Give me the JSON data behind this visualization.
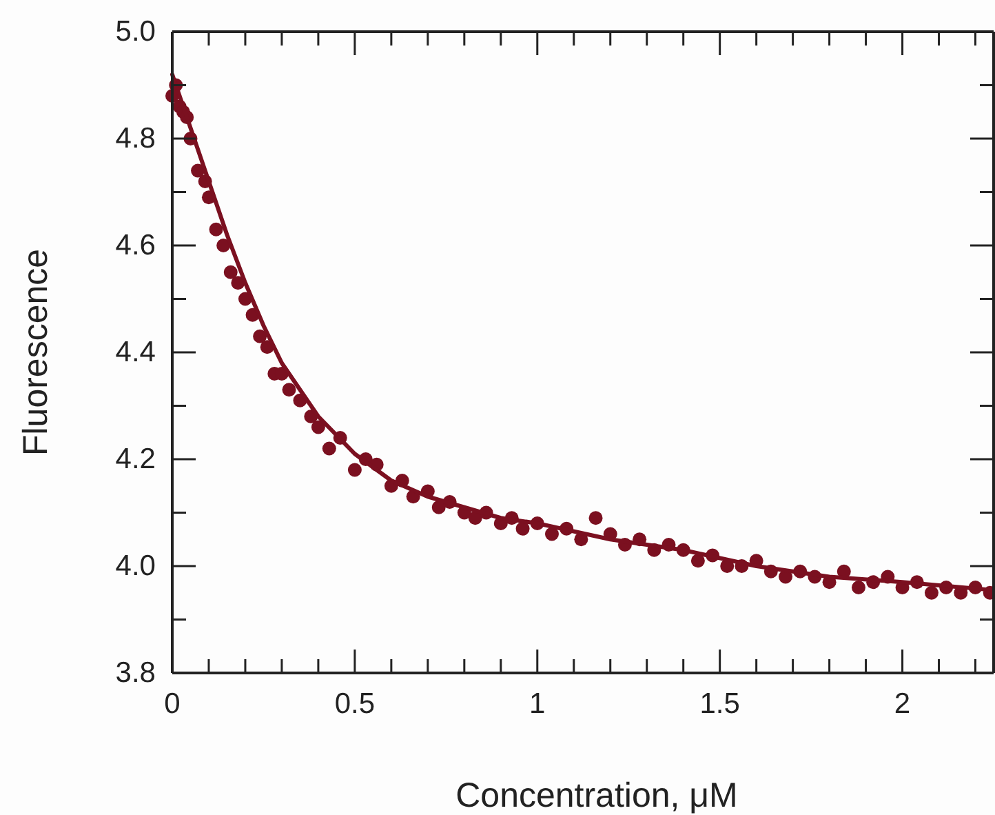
{
  "chart_data": {
    "type": "scatter",
    "xlabel": "Concentration, μM",
    "ylabel": "Fluorescence",
    "xlim": [
      0,
      2.25
    ],
    "ylim": [
      3.8,
      5.0
    ],
    "xticks": [
      0,
      {
        "value": 0.1,
        "label": null
      },
      {
        "value": 0.2,
        "label": null
      },
      {
        "value": 0.3,
        "label": null
      },
      {
        "value": 0.4,
        "label": null
      },
      0.5,
      {
        "value": 0.6,
        "label": null
      },
      {
        "value": 0.7,
        "label": null
      },
      {
        "value": 0.8,
        "label": null
      },
      {
        "value": 0.9,
        "label": null
      },
      1,
      {
        "value": 1.1,
        "label": null
      },
      {
        "value": 1.2,
        "label": null
      },
      {
        "value": 1.3,
        "label": null
      },
      {
        "value": 1.4,
        "label": null
      },
      1.5,
      {
        "value": 1.6,
        "label": null
      },
      {
        "value": 1.7,
        "label": null
      },
      {
        "value": 1.8,
        "label": null
      },
      {
        "value": 1.9,
        "label": null
      },
      2,
      {
        "value": 2.1,
        "label": null
      },
      {
        "value": 2.2,
        "label": null
      }
    ],
    "yticks": [
      {
        "value": 3.8,
        "label": "3.8"
      },
      {
        "value": 3.9,
        "label": null
      },
      {
        "value": 4.0,
        "label": "4.0"
      },
      {
        "value": 4.1,
        "label": null
      },
      {
        "value": 4.2,
        "label": "4.2"
      },
      {
        "value": 4.3,
        "label": null
      },
      {
        "value": 4.4,
        "label": "4.4"
      },
      {
        "value": 4.5,
        "label": null
      },
      {
        "value": 4.6,
        "label": "4.6"
      },
      {
        "value": 4.7,
        "label": null
      },
      {
        "value": 4.8,
        "label": "4.8"
      },
      {
        "value": 4.9,
        "label": null
      },
      {
        "value": 5.0,
        "label": "5.0"
      }
    ],
    "grid": false,
    "marker": "circle",
    "series": [
      {
        "color": "#7b1020",
        "x": [
          0.0,
          0.01,
          0.02,
          0.03,
          0.04,
          0.05,
          0.07,
          0.09,
          0.1,
          0.12,
          0.14,
          0.16,
          0.18,
          0.2,
          0.22,
          0.24,
          0.26,
          0.28,
          0.3,
          0.32,
          0.35,
          0.38,
          0.4,
          0.43,
          0.46,
          0.5,
          0.53,
          0.56,
          0.6,
          0.63,
          0.66,
          0.7,
          0.73,
          0.76,
          0.8,
          0.83,
          0.86,
          0.9,
          0.93,
          0.96,
          1.0,
          1.04,
          1.08,
          1.12,
          1.16,
          1.2,
          1.24,
          1.28,
          1.32,
          1.36,
          1.4,
          1.44,
          1.48,
          1.52,
          1.56,
          1.6,
          1.64,
          1.68,
          1.72,
          1.76,
          1.8,
          1.84,
          1.88,
          1.92,
          1.96,
          2.0,
          2.04,
          2.08,
          2.12,
          2.16,
          2.2,
          2.24
        ],
        "values": [
          4.88,
          4.9,
          4.86,
          4.85,
          4.84,
          4.8,
          4.74,
          4.72,
          4.69,
          4.63,
          4.6,
          4.55,
          4.53,
          4.5,
          4.47,
          4.43,
          4.41,
          4.36,
          4.36,
          4.33,
          4.31,
          4.28,
          4.26,
          4.22,
          4.24,
          4.18,
          4.2,
          4.19,
          4.15,
          4.16,
          4.13,
          4.14,
          4.11,
          4.12,
          4.1,
          4.09,
          4.1,
          4.08,
          4.09,
          4.07,
          4.08,
          4.06,
          4.07,
          4.05,
          4.09,
          4.06,
          4.04,
          4.05,
          4.03,
          4.04,
          4.03,
          4.01,
          4.02,
          4.0,
          4.0,
          4.01,
          3.99,
          3.98,
          3.99,
          3.98,
          3.97,
          3.99,
          3.96,
          3.97,
          3.98,
          3.96,
          3.97,
          3.95,
          3.96,
          3.95,
          3.96,
          3.95
        ]
      },
      {
        "type": "line",
        "color": "#7b1020",
        "marker": "none",
        "line_style": "solid",
        "x": [
          0,
          0.05,
          0.1,
          0.15,
          0.2,
          0.25,
          0.3,
          0.4,
          0.5,
          0.6,
          0.7,
          0.8,
          0.9,
          1.0,
          1.2,
          1.4,
          1.6,
          1.8,
          2.0,
          2.25
        ],
        "values": [
          4.92,
          4.82,
          4.72,
          4.62,
          4.53,
          4.45,
          4.38,
          4.28,
          4.21,
          4.16,
          4.13,
          4.11,
          4.09,
          4.08,
          4.05,
          4.03,
          4.0,
          3.98,
          3.97,
          3.955
        ]
      }
    ]
  }
}
